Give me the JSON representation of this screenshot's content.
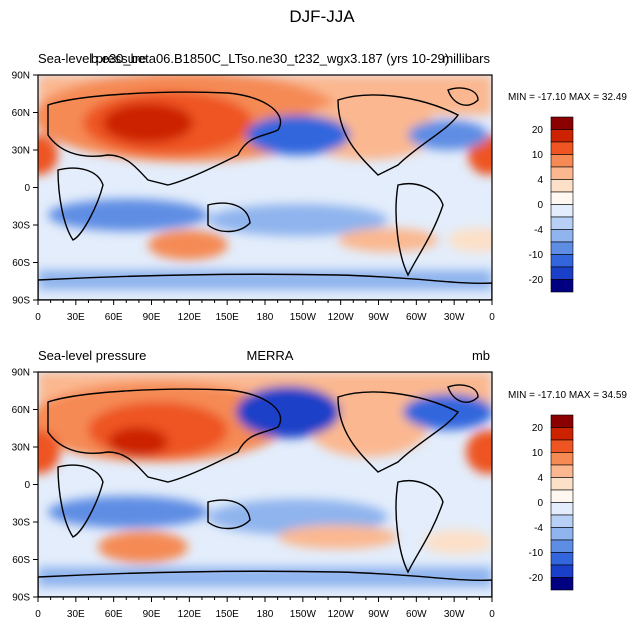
{
  "title": "DJF-JJA",
  "colorbar_levels": [
    "20",
    "10",
    "4",
    "0",
    "-4",
    "-10",
    "-20"
  ],
  "colorbar_colors": [
    "#8b0000",
    "#cc2200",
    "#ee5522",
    "#f58a55",
    "#fbb890",
    "#fde0c8",
    "#fff8f0",
    "#e3edfb",
    "#b8d0f5",
    "#8fb4ee",
    "#5e8de4",
    "#3366dd",
    "#1a3fc8",
    "#000080"
  ],
  "chart_data": [
    {
      "type": "heatmap",
      "title": "b.e30_beta06.B1850C_LTso.ne30_t232_wgx3.187 (yrs 10-29)",
      "left_label": "Sea-level pressure",
      "units": "millibars",
      "min_max": "MIN = -17.10 MAX =  32.49",
      "min": -17.1,
      "max": 32.49,
      "x_ticks": [
        "0",
        "30E",
        "60E",
        "90E",
        "120E",
        "150E",
        "180",
        "150W",
        "120W",
        "90W",
        "60W",
        "30W",
        "0"
      ],
      "y_ticks": [
        "90N",
        "60N",
        "30N",
        "0",
        "30S",
        "60S",
        "90S"
      ]
    },
    {
      "type": "heatmap",
      "title": "MERRA",
      "left_label": "Sea-level pressure",
      "units": "mb",
      "min_max": "MIN = -17.10 MAX =  34.59",
      "min": -17.1,
      "max": 34.59,
      "x_ticks": [
        "0",
        "30E",
        "60E",
        "90E",
        "120E",
        "150E",
        "180",
        "150W",
        "120W",
        "90W",
        "60W",
        "30W",
        "0"
      ],
      "y_ticks": [
        "90N",
        "60N",
        "30N",
        "0",
        "30S",
        "60S",
        "90S"
      ]
    }
  ]
}
